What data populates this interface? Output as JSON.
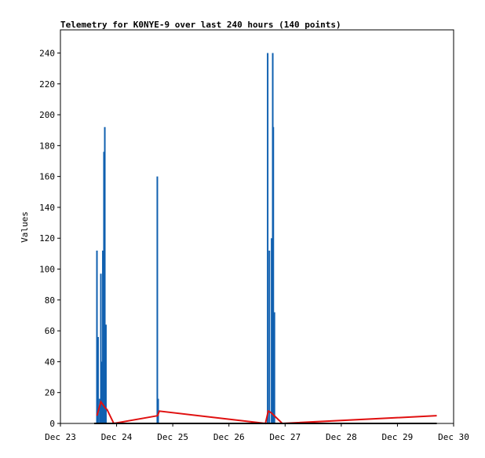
{
  "chart_data": {
    "type": "line",
    "title": "Telemetry for K0NYE-9 over last 240 hours (140 points)",
    "y_label": "Values",
    "xlim": [
      0,
      7
    ],
    "xticks": [
      {
        "value": 0,
        "label": "Dec 23"
      },
      {
        "value": 1,
        "label": "Dec 24"
      },
      {
        "value": 2,
        "label": "Dec 25"
      },
      {
        "value": 3,
        "label": "Dec 26"
      },
      {
        "value": 4,
        "label": "Dec 27"
      },
      {
        "value": 5,
        "label": "Dec 28"
      },
      {
        "value": 6,
        "label": "Dec 29"
      },
      {
        "value": 7,
        "label": "Dec 30"
      }
    ],
    "ylim": [
      0,
      255
    ],
    "yticks": [
      0,
      20,
      40,
      60,
      80,
      100,
      120,
      140,
      160,
      180,
      200,
      220,
      240
    ],
    "series": [
      {
        "color": "#1060b0",
        "style": "spike",
        "x": [
          0.65,
          0.67,
          0.7,
          0.72,
          0.74,
          0.755,
          0.775,
          0.79,
          0.81,
          1.725,
          1.74,
          3.69,
          3.72,
          3.76,
          3.78,
          3.79,
          3.81
        ],
        "values": [
          112,
          56,
          16,
          97,
          40,
          112,
          176,
          192,
          64,
          160,
          16,
          240,
          112,
          120,
          240,
          192,
          72
        ]
      },
      {
        "color": "#e01010",
        "style": "line",
        "x": [
          0.65,
          0.72,
          0.8,
          0.83,
          0.95,
          1.73,
          1.76,
          3.65,
          3.7,
          3.75,
          3.95,
          6.7
        ],
        "values": [
          5,
          14,
          10,
          9,
          0,
          5,
          8,
          0,
          8,
          7,
          0,
          5
        ]
      },
      {
        "color": "#000000",
        "style": "line",
        "x": [
          0.6,
          6.7
        ],
        "values": [
          0,
          0
        ]
      }
    ]
  }
}
